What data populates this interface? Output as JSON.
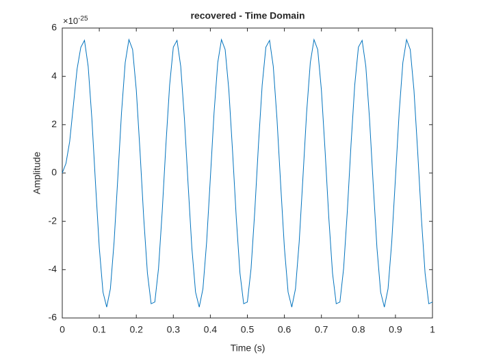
{
  "chart_data": {
    "type": "line",
    "title": "recovered - Time Domain",
    "x_label": "Time (s)",
    "y_label": "Amplitude",
    "y_multiplier": {
      "base": "×10",
      "exponent": "-25"
    },
    "color": "#0072bd",
    "xlim": [
      0,
      1
    ],
    "xticks": [
      0,
      0.1,
      0.2,
      0.3,
      0.4,
      0.5,
      0.6,
      0.7,
      0.8,
      0.9,
      1
    ],
    "ylim": [
      -6,
      6
    ],
    "yticks": [
      -6,
      -4,
      -2,
      0,
      2,
      4,
      6
    ],
    "x": [
      0,
      0.01,
      0.02,
      0.03,
      0.04,
      0.05,
      0.06,
      0.07,
      0.08,
      0.09,
      0.1,
      0.11,
      0.12,
      0.13,
      0.14,
      0.15,
      0.16,
      0.17,
      0.18,
      0.19,
      0.2,
      0.21,
      0.22,
      0.23,
      0.24,
      0.25,
      0.26,
      0.27,
      0.28,
      0.29,
      0.3,
      0.31,
      0.32,
      0.33,
      0.34,
      0.35,
      0.36,
      0.37,
      0.38,
      0.39,
      0.4,
      0.41,
      0.42,
      0.43,
      0.44,
      0.45,
      0.46,
      0.47,
      0.48,
      0.49,
      0.5,
      0.51,
      0.52,
      0.53,
      0.54,
      0.55,
      0.56,
      0.57,
      0.58,
      0.59,
      0.6,
      0.61,
      0.62,
      0.63,
      0.64,
      0.65,
      0.66,
      0.67,
      0.68,
      0.69,
      0.7,
      0.71,
      0.72,
      0.73,
      0.74,
      0.75,
      0.76,
      0.77,
      0.78,
      0.79,
      0.8,
      0.81,
      0.82,
      0.83,
      0.84,
      0.85,
      0.86,
      0.87,
      0.88,
      0.89,
      0.9,
      0.91,
      0.92,
      0.93,
      0.94,
      0.95,
      0.96,
      0.97,
      0.98,
      0.99,
      1
    ],
    "values": [
      0,
      0.4,
      1.3,
      2.8,
      4.3,
      5.2,
      5.49,
      4.41,
      2.24,
      -0.49,
      -3.09,
      -4.93,
      -5.55,
      -4.79,
      -2.85,
      -0.21,
      2.49,
      4.57,
      5.52,
      5.11,
      3.43,
      0.9,
      -1.85,
      -4.14,
      -5.41,
      -5.34,
      -3.95,
      -1.58,
      1.18,
      3.64,
      5.21,
      5.49,
      4.41,
      2.24,
      -0.49,
      -3.09,
      -4.93,
      -5.55,
      -4.79,
      -2.85,
      -0.21,
      2.49,
      4.57,
      5.52,
      5.11,
      3.43,
      0.9,
      -1.85,
      -4.14,
      -5.41,
      -5.34,
      -3.95,
      -1.58,
      1.18,
      3.64,
      5.21,
      5.49,
      4.41,
      2.24,
      -0.49,
      -3.09,
      -4.93,
      -5.55,
      -4.79,
      -2.85,
      -0.21,
      2.49,
      4.57,
      5.52,
      5.11,
      3.43,
      0.9,
      -1.85,
      -4.14,
      -5.41,
      -5.34,
      -3.95,
      -1.58,
      1.18,
      3.64,
      5.21,
      5.49,
      4.41,
      2.24,
      -0.49,
      -3.09,
      -4.93,
      -5.55,
      -4.79,
      -2.85,
      -0.21,
      2.49,
      4.57,
      5.52,
      5.11,
      3.43,
      0.9,
      -1.85,
      -4.14,
      -5.41,
      -5.34
    ]
  }
}
